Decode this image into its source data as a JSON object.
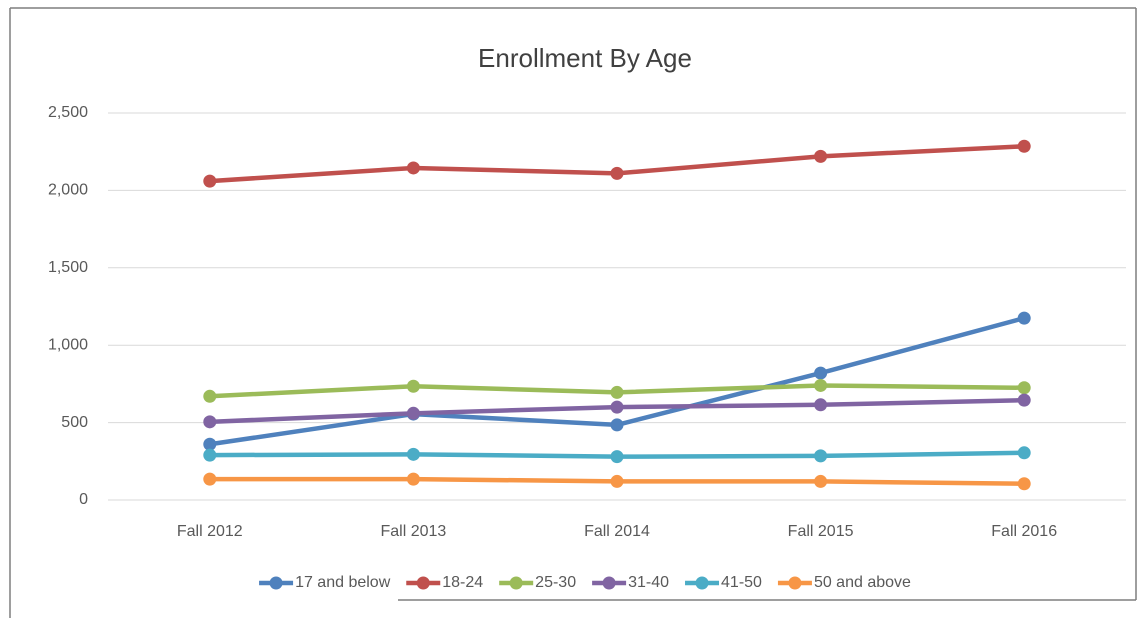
{
  "chart_data": {
    "type": "line",
    "title": "Enrollment By Age",
    "categories": [
      "Fall 2012",
      "Fall 2013",
      "Fall 2014",
      "Fall 2015",
      "Fall 2016"
    ],
    "series": [
      {
        "name": "17 and below",
        "color": "#4f81bd",
        "values": [
          360,
          555,
          485,
          820,
          1175
        ]
      },
      {
        "name": "18-24",
        "color": "#c0504d",
        "values": [
          2060,
          2145,
          2110,
          2220,
          2285
        ]
      },
      {
        "name": "25-30",
        "color": "#9bbb59",
        "values": [
          670,
          735,
          695,
          740,
          725
        ]
      },
      {
        "name": "31-40",
        "color": "#8064a2",
        "values": [
          505,
          560,
          600,
          615,
          645
        ]
      },
      {
        "name": "41-50",
        "color": "#4bacc6",
        "values": [
          290,
          295,
          280,
          285,
          305
        ]
      },
      {
        "name": "50 and above",
        "color": "#f79646",
        "values": [
          135,
          135,
          120,
          120,
          105
        ]
      }
    ],
    "ylim": [
      0,
      2500
    ],
    "yticks": [
      0,
      500,
      {
        "value": 1000,
        "label": "1,000"
      },
      {
        "value": 1500,
        "label": "1,500"
      },
      {
        "value": 2000,
        "label": "2,000"
      },
      {
        "value": 2500,
        "label": "2,500"
      }
    ],
    "grid": true,
    "legend": "bottom"
  }
}
